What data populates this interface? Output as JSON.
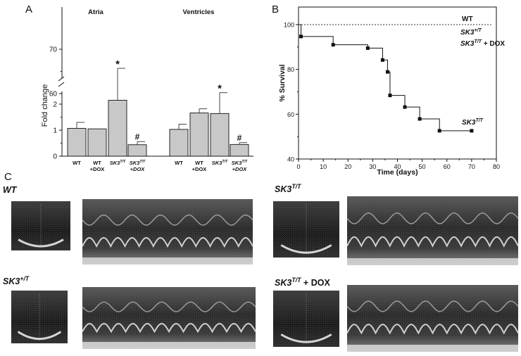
{
  "panels": {
    "a": "A",
    "b": "B",
    "c": "C"
  },
  "chart_data": [
    {
      "type": "bar",
      "panel": "A",
      "ylabel": "Fold change",
      "broken_axis": true,
      "lower_ticks": [
        "0",
        "1",
        "2"
      ],
      "upper_ticks": [
        "60",
        "70"
      ],
      "groups": [
        {
          "name": "Atria",
          "bars": [
            {
              "label": "WT",
              "label2": "",
              "value": 1.07,
              "error": 0.23,
              "mark": ""
            },
            {
              "label": "WT",
              "label2": "+DOX",
              "value": 1.05,
              "error": 0.0,
              "mark": ""
            },
            {
              "label": "SK3",
              "sup": "T/T",
              "label2": "",
              "value": 58.5,
              "error": 7.2,
              "mark": "*"
            },
            {
              "label": "SK3",
              "sup": "T/T",
              "label2": "+DOX",
              "value": 0.44,
              "error": 0.12,
              "mark": "#"
            }
          ]
        },
        {
          "name": "Ventricles",
          "bars": [
            {
              "label": "WT",
              "label2": "",
              "value": 1.03,
              "error": 0.2,
              "mark": ""
            },
            {
              "label": "WT",
              "label2": "+DOX",
              "value": 1.66,
              "error": 0.16,
              "mark": ""
            },
            {
              "label": "SK3",
              "sup": "T/T",
              "label2": "",
              "value": 55.5,
              "error": 4.7,
              "mark": "*"
            },
            {
              "label": "SK3",
              "sup": "T/T",
              "label2": "+DOX",
              "value": 0.45,
              "error": 0.07,
              "mark": "#"
            }
          ]
        }
      ]
    },
    {
      "type": "line",
      "panel": "B",
      "xlabel": "Time (days)",
      "ylabel": "% Survival",
      "xlim": [
        0,
        80
      ],
      "ylim": [
        40,
        100
      ],
      "xticks": [
        0,
        10,
        20,
        30,
        40,
        50,
        60,
        70,
        80
      ],
      "yticks": [
        40,
        60,
        80,
        100
      ],
      "series": [
        {
          "name": "WT",
          "style": "dotted",
          "x": [
            0,
            70
          ],
          "y": [
            100,
            100
          ]
        },
        {
          "name": "SK3",
          "sup": "+/T",
          "style": "dotted",
          "x": [
            0,
            70
          ],
          "y": [
            100,
            100
          ]
        },
        {
          "name": "SK3",
          "sup": "T/T",
          "suffix": " + DOX",
          "style": "dotted",
          "x": [
            0,
            70
          ],
          "y": [
            100,
            100
          ]
        },
        {
          "name": "SK3",
          "sup": "T/T",
          "style": "step",
          "x": [
            1,
            14,
            28,
            34,
            36,
            37,
            43,
            49,
            57,
            70
          ],
          "y": [
            94.7,
            91.0,
            89.5,
            84.2,
            78.9,
            68.4,
            63.2,
            57.9,
            52.6,
            52.6
          ]
        }
      ]
    }
  ],
  "echo_panels": [
    {
      "label": "WT",
      "sup": ""
    },
    {
      "label": "SK3",
      "sup": "T/T"
    },
    {
      "label": "SK3",
      "sup": "+/T"
    },
    {
      "label": "SK3",
      "sup": "T/T",
      "suffix": " + DOX"
    }
  ]
}
